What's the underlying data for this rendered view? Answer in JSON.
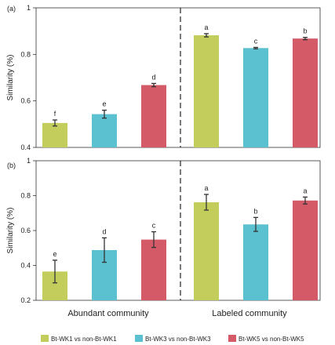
{
  "chart_data": [
    {
      "type": "bar",
      "panel_label": "(a)",
      "ylabel": "Similarity (%)",
      "ylim": [
        0.4,
        1.0
      ],
      "yticks": [
        0.4,
        0.6,
        0.8,
        1.0
      ],
      "ytick_labels": [
        "0.4",
        "0.6",
        "0.8",
        "1"
      ],
      "groups": [
        "Abundant community",
        "Labeled community"
      ],
      "series": [
        {
          "name": "Bt-WK1 vs non-Bt-WK1",
          "color": "#c2cd5c",
          "values": [
            0.505,
            0.882
          ],
          "errors": [
            0.013,
            0.007
          ],
          "letters": [
            "f",
            "a"
          ]
        },
        {
          "name": "Bt-WK3 vs non-Bt-WK3",
          "color": "#5bc0d0",
          "values": [
            0.543,
            0.827
          ],
          "errors": [
            0.017,
            0.003
          ],
          "letters": [
            "e",
            "c"
          ]
        },
        {
          "name": "Bt-WK5 vs non-Bt-WK5",
          "color": "#d45a68",
          "values": [
            0.668,
            0.868
          ],
          "errors": [
            0.007,
            0.005
          ],
          "letters": [
            "d",
            "b"
          ]
        }
      ]
    },
    {
      "type": "bar",
      "panel_label": "(b)",
      "ylabel": "Similarity (%)",
      "ylim": [
        0.2,
        1.0
      ],
      "yticks": [
        0.2,
        0.4,
        0.6,
        0.8,
        1.0
      ],
      "ytick_labels": [
        "0.2",
        "0.4",
        "0.6",
        "0.8",
        "1"
      ],
      "groups": [
        "Abundant community",
        "Labeled community"
      ],
      "series": [
        {
          "name": "Bt-WK1 vs non-Bt-WK1",
          "color": "#c2cd5c",
          "values": [
            0.365,
            0.762
          ],
          "errors": [
            0.065,
            0.045
          ],
          "letters": [
            "e",
            "a"
          ]
        },
        {
          "name": "Bt-WK3 vs non-Bt-WK3",
          "color": "#5bc0d0",
          "values": [
            0.488,
            0.635
          ],
          "errors": [
            0.07,
            0.04
          ],
          "letters": [
            "d",
            "b"
          ]
        },
        {
          "name": "Bt-WK5 vs non-Bt-WK5",
          "color": "#d45a68",
          "values": [
            0.548,
            0.772
          ],
          "errors": [
            0.045,
            0.02
          ],
          "letters": [
            "c",
            "a"
          ]
        }
      ]
    }
  ],
  "xaxis": {
    "group_labels": [
      "Abundant community",
      "Labeled community"
    ]
  },
  "legend": {
    "placement": "bottom",
    "items": [
      {
        "label": "Bt-WK1 vs non-Bt-WK1",
        "color": "#c2cd5c"
      },
      {
        "label": "Bt-WK3 vs non-Bt-WK3",
        "color": "#5bc0d0"
      },
      {
        "label": "Bt-WK5 vs non-Bt-WK5",
        "color": "#d45a68"
      }
    ]
  }
}
